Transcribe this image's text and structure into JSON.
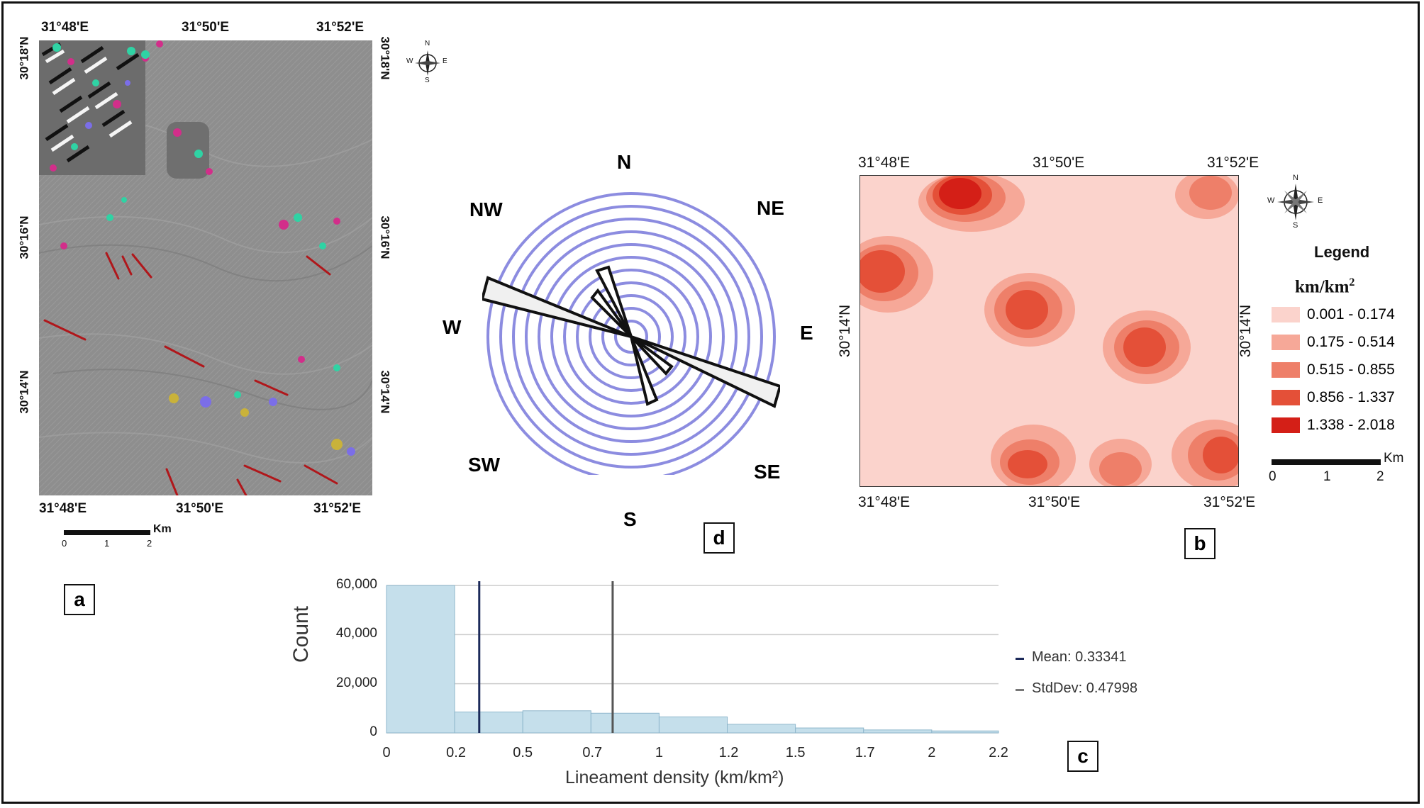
{
  "panels": {
    "a": {
      "letter": "a",
      "top_lon": [
        "31°48'E",
        "31°50'E",
        "31°52'E"
      ],
      "bottom_lon": [
        "31°48'E",
        "31°50'E",
        "31°52'E"
      ],
      "left_lat": [
        "30°18'N",
        "30°16'N",
        "30°14'N"
      ],
      "right_lat": [
        "30°18'N",
        "30°16'N",
        "30°14'N"
      ],
      "scalebar": {
        "unit": "Km",
        "ticks": [
          "0",
          "1",
          "2"
        ]
      },
      "north": {
        "n": "N",
        "s": "S",
        "e": "E",
        "w": "W"
      }
    },
    "b": {
      "letter": "b",
      "top_lon": [
        "31°48'E",
        "31°50'E",
        "31°52'E"
      ],
      "bottom_lon": [
        "31°48'E",
        "31°50'E",
        "31°52'E"
      ],
      "left_lat": "30°14'N",
      "right_lat": "30°14'N",
      "legend_title": "Legend",
      "legend_unit": "km/km",
      "legend_unit_sup": "2",
      "legend": [
        {
          "label": "0.001 - 0.174",
          "color": "#fbd3cc"
        },
        {
          "label": "0.175 - 0.514",
          "color": "#f6a898"
        },
        {
          "label": "0.515 - 0.855",
          "color": "#ee7f69"
        },
        {
          "label": "0.856 - 1.337",
          "color": "#e45038"
        },
        {
          "label": "1.338 - 2.018",
          "color": "#d41f17"
        }
      ],
      "scalebar": {
        "unit": "Km",
        "ticks": [
          "0",
          "1",
          "2"
        ]
      },
      "north": {
        "n": "N",
        "s": "S",
        "e": "E",
        "w": "W"
      }
    },
    "c": {
      "letter": "c"
    },
    "d": {
      "letter": "d",
      "directions": {
        "n": "N",
        "ne": "NE",
        "e": "E",
        "se": "SE",
        "s": "S",
        "sw": "SW",
        "w": "W",
        "nw": "NW"
      }
    }
  },
  "chart_data": {
    "type": "bar",
    "xlabel": "Lineament density (km/km²)",
    "ylabel": "Count",
    "x_ticks": [
      "0",
      "0.2",
      "0.5",
      "0.7",
      "1",
      "1.2",
      "1.5",
      "1.7",
      "2",
      "2.2"
    ],
    "y_ticks": [
      "0",
      "20,000",
      "40,000",
      "60,000"
    ],
    "xlim": [
      0,
      2.2
    ],
    "ylim": [
      0,
      60000
    ],
    "bins": [
      {
        "x0": 0.0,
        "x1": 0.245,
        "count": 60000
      },
      {
        "x0": 0.245,
        "x1": 0.49,
        "count": 8500
      },
      {
        "x0": 0.49,
        "x1": 0.735,
        "count": 9000
      },
      {
        "x0": 0.735,
        "x1": 0.98,
        "count": 8000
      },
      {
        "x0": 0.98,
        "x1": 1.225,
        "count": 6500
      },
      {
        "x0": 1.225,
        "x1": 1.47,
        "count": 3500
      },
      {
        "x0": 1.47,
        "x1": 1.715,
        "count": 2000
      },
      {
        "x0": 1.715,
        "x1": 1.96,
        "count": 1200
      },
      {
        "x0": 1.96,
        "x1": 2.2,
        "count": 800
      }
    ],
    "mean": 0.33341,
    "mean_label": "Mean: 0.33341",
    "std_line_x": 0.813,
    "std_label": "StdDev: 0.47998",
    "colors": {
      "bar": "#c5dfeb",
      "bar_edge": "#8fb7cc",
      "mean": "#1c2a5a",
      "std": "#555555",
      "grid": "#cccccc"
    }
  }
}
